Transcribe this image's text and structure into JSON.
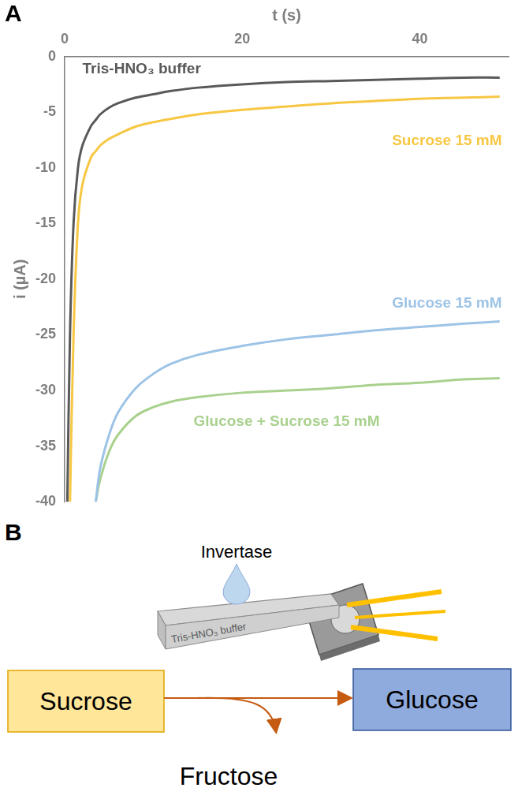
{
  "panel_labels": [
    "A",
    "B"
  ],
  "chart_data": {
    "type": "line",
    "x_label": "t (s)",
    "y_label": "i (µA)",
    "x": [
      0.3,
      0.6,
      1,
      1.5,
      2,
      3,
      3.5,
      4,
      5,
      6,
      8,
      10,
      12,
      15,
      20,
      25,
      30,
      35,
      40,
      45,
      49
    ],
    "xlim": [
      0,
      50
    ],
    "xticks": [
      0,
      20,
      40
    ],
    "ylim": [
      -40,
      0
    ],
    "yticks": [
      -40,
      -35,
      -30,
      -25,
      -20,
      -15,
      -10,
      -5,
      0
    ],
    "grid": false,
    "series": [
      {
        "name": "Tris-HNO₃ buffer",
        "color": "#595959",
        "values": [
          -40,
          -25,
          -15,
          -10,
          -8,
          -6.2,
          -5.7,
          -5.2,
          -4.6,
          -4.2,
          -3.7,
          -3.4,
          -3.1,
          -2.8,
          -2.5,
          -2.3,
          -2.2,
          -2.1,
          -2.0,
          -1.9,
          -1.9
        ]
      },
      {
        "name": "Sucrose 15 mM",
        "color": "#f7c744",
        "values": [
          null,
          -40,
          -25,
          -15,
          -11.5,
          -9,
          -8.5,
          -8,
          -7.4,
          -7,
          -6.3,
          -5.9,
          -5.6,
          -5.2,
          -4.8,
          -4.5,
          -4.2,
          -4.0,
          -3.8,
          -3.7,
          -3.6
        ]
      },
      {
        "name": "Glucose 15 mM",
        "color": "#9dc3e6",
        "values": [
          null,
          null,
          null,
          null,
          null,
          null,
          -40,
          -37,
          -34,
          -32,
          -29.8,
          -28.5,
          -27.6,
          -26.8,
          -26.0,
          -25.4,
          -25.0,
          -24.6,
          -24.3,
          -24.0,
          -23.8
        ]
      },
      {
        "name": "Glucose + Sucrose 15 mM",
        "color": "#a9d18e",
        "values": [
          null,
          null,
          null,
          null,
          null,
          null,
          -40,
          -38,
          -35.5,
          -34,
          -32.3,
          -31.5,
          -31,
          -30.6,
          -30.2,
          -30.0,
          -29.8,
          -29.5,
          -29.3,
          -29.0,
          -28.9
        ]
      }
    ]
  },
  "diagram": {
    "enzyme": "Invertase",
    "strip_label": "Tris-HNO₃ buffer",
    "substrate": "Sucrose",
    "product": "Glucose",
    "byproduct": "Fructose"
  }
}
